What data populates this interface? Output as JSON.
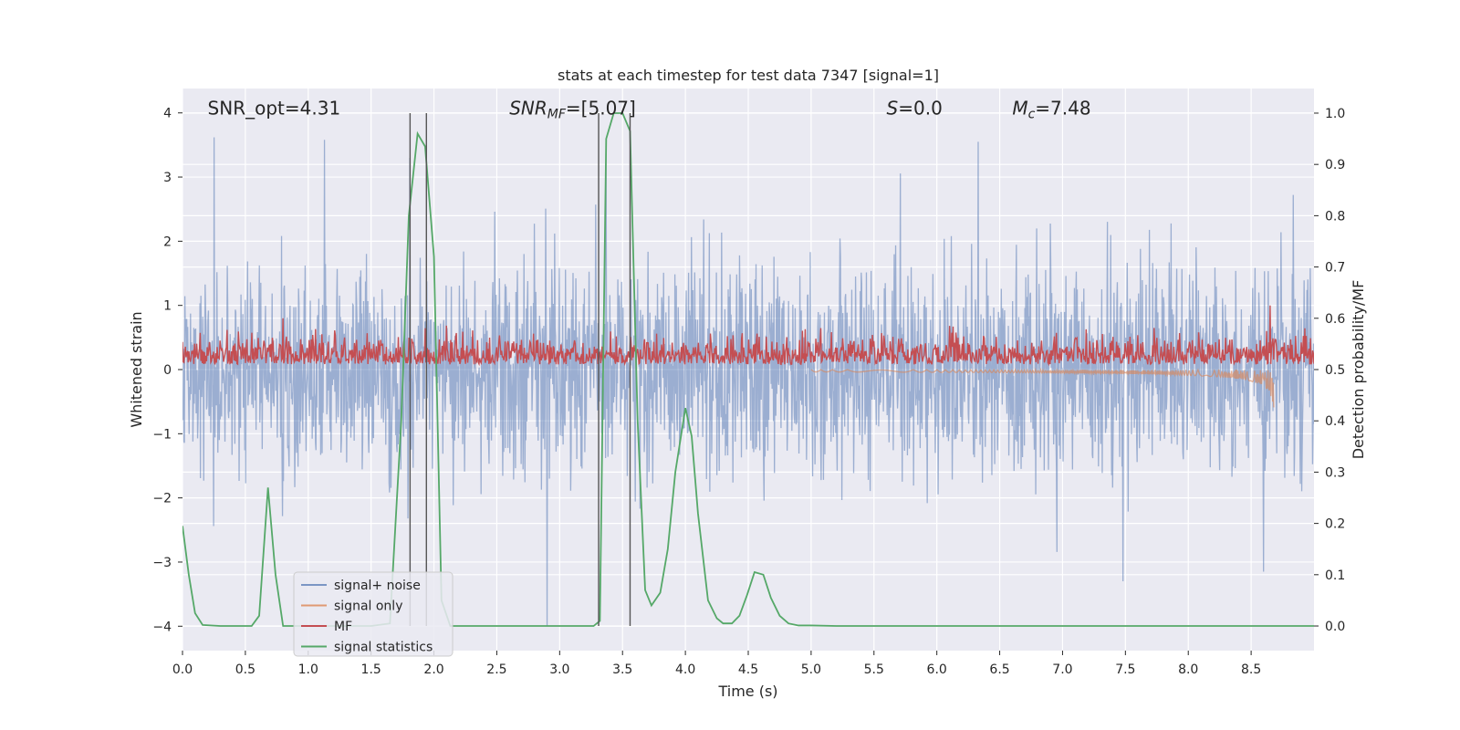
{
  "chart_data": {
    "type": "line",
    "title": "stats at each timestep for test data 7347 [signal=1]",
    "xlabel": "Time (s)",
    "ylabel": "Whitened strain",
    "y2label": "Detection probability/MF",
    "xlim": [
      0,
      9.0
    ],
    "ylim": [
      -4.38,
      4.38
    ],
    "y2lim": [
      -0.048,
      1.048
    ],
    "xticks": [
      0.0,
      0.5,
      1.0,
      1.5,
      2.0,
      2.5,
      3.0,
      3.5,
      4.0,
      4.5,
      5.0,
      5.5,
      6.0,
      6.5,
      7.0,
      7.5,
      8.0,
      8.5
    ],
    "xtick_labels": [
      "0.0",
      "0.5",
      "1.0",
      "1.5",
      "2.0",
      "2.5",
      "3.0",
      "3.5",
      "4.0",
      "4.5",
      "5.0",
      "5.5",
      "6.0",
      "6.5",
      "7.0",
      "7.5",
      "8.0",
      "8.5"
    ],
    "yticks": [
      4,
      3,
      2,
      1,
      0,
      -1,
      -2,
      -3,
      -4
    ],
    "ytick_labels": [
      "4",
      "3",
      "2",
      "1",
      "0",
      "−1",
      "−2",
      "−3",
      "−4"
    ],
    "y2ticks": [
      1.0,
      0.9,
      0.8,
      0.7,
      0.6,
      0.5,
      0.4,
      0.3,
      0.2,
      0.1,
      0.0
    ],
    "y2tick_labels": [
      "1.0",
      "0.9",
      "0.8",
      "0.7",
      "0.6",
      "0.5",
      "0.4",
      "0.3",
      "0.2",
      "0.1",
      "0.0"
    ],
    "grid": true,
    "legend_position": "bottom-left",
    "annotations": [
      {
        "text": "SNR_opt=4.31",
        "x": 0.2,
        "y": 4.1
      },
      {
        "text_main": "SNR",
        "text_sub": "MF",
        "text_rest": "=[5.07]",
        "italic_main": true,
        "x": 2.6,
        "y": 4.1
      },
      {
        "text_main": "S",
        "text_rest": "=0.0",
        "italic_main": true,
        "x": 5.6,
        "y": 4.1
      },
      {
        "text_main": "M",
        "text_sub": "c",
        "text_rest": "=7.48",
        "italic_main": true,
        "x": 6.6,
        "y": 4.1
      }
    ],
    "vlines": [
      {
        "x": 1.81,
        "ymin": 0.0,
        "ymax": 1.0
      },
      {
        "x": 1.94,
        "ymin": 0.0,
        "ymax": 1.0
      },
      {
        "x": 3.31,
        "ymin": 0.0,
        "ymax": 1.0
      },
      {
        "x": 3.56,
        "ymin": 0.0,
        "ymax": 1.0
      }
    ],
    "series": [
      {
        "name": "signal+ noise",
        "axis": "left",
        "color": "#4c72b0",
        "opacity": 0.5,
        "kind": "noise",
        "sigma": 0.8,
        "points": 2400,
        "seed": 7347,
        "outliers": [
          {
            "x": 0.25,
            "y": 3.62
          },
          {
            "x": 1.13,
            "y": 3.58
          },
          {
            "x": 1.81,
            "y": 3.3
          },
          {
            "x": 2.9,
            "y": -4.0
          },
          {
            "x": 3.37,
            "y": 3.45
          },
          {
            "x": 6.33,
            "y": 3.55
          },
          {
            "x": 7.48,
            "y": -3.3
          },
          {
            "x": 8.6,
            "y": 3.58
          },
          {
            "x": 8.6,
            "y": -3.15
          }
        ]
      },
      {
        "name": "signal only",
        "axis": "left",
        "color": "#dd8452",
        "opacity": 0.6,
        "kind": "chirp",
        "start": 5.0,
        "end": 8.68,
        "amplitude_end": 0.65
      },
      {
        "name": "MF",
        "axis": "right",
        "color": "#c44e52",
        "kind": "noise_positive",
        "mean": 0.52,
        "spread": 0.022,
        "points": 1600,
        "seed": 41,
        "peaks": [
          {
            "x": 0.8,
            "y": 0.6
          },
          {
            "x": 8.65,
            "y": 0.625
          }
        ]
      },
      {
        "name": "signal statistics",
        "axis": "right",
        "color": "#55a868",
        "kind": "line",
        "x": [
          0.0,
          0.05,
          0.1,
          0.16,
          0.3,
          0.55,
          0.61,
          0.68,
          0.74,
          0.8,
          0.9,
          1.5,
          1.65,
          1.74,
          1.8,
          1.87,
          1.93,
          2.0,
          2.06,
          2.13,
          2.2,
          3.27,
          3.32,
          3.37,
          3.43,
          3.5,
          3.56,
          3.62,
          3.68,
          3.73,
          3.8,
          3.86,
          3.92,
          4.0,
          4.05,
          4.1,
          4.18,
          4.25,
          4.3,
          4.37,
          4.43,
          4.49,
          4.55,
          4.62,
          4.68,
          4.75,
          4.82,
          4.9,
          5.0,
          5.2,
          9.0
        ],
        "y": [
          0.195,
          0.1,
          0.025,
          0.002,
          0.0,
          0.0,
          0.02,
          0.27,
          0.1,
          0.0,
          0.0,
          0.0,
          0.005,
          0.4,
          0.8,
          0.96,
          0.935,
          0.72,
          0.05,
          0.0,
          0.0,
          0.0,
          0.01,
          0.95,
          1.0,
          1.0,
          0.965,
          0.4,
          0.07,
          0.04,
          0.065,
          0.15,
          0.3,
          0.425,
          0.37,
          0.22,
          0.05,
          0.015,
          0.005,
          0.005,
          0.02,
          0.06,
          0.105,
          0.1,
          0.055,
          0.02,
          0.005,
          0.001,
          0.001,
          0.0,
          0.0
        ]
      }
    ]
  }
}
